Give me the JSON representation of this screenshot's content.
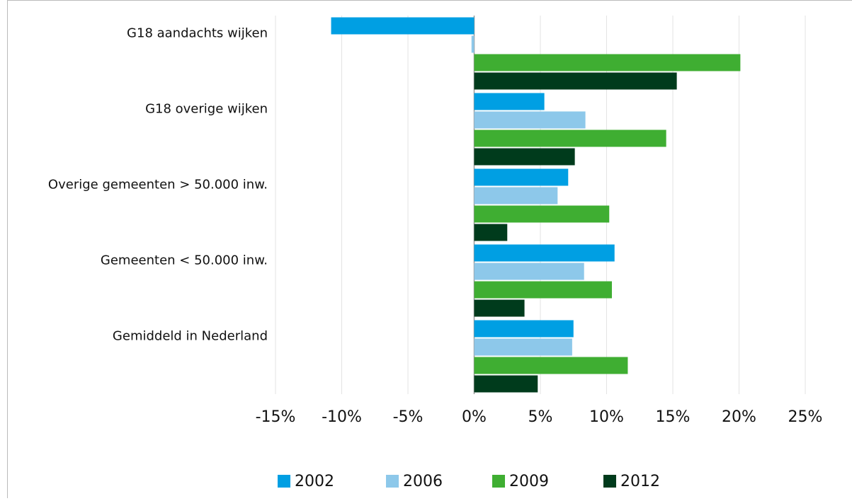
{
  "chart_data": {
    "type": "hbar",
    "categories": [
      "G18 aandachts wijken",
      "G18 overige wijken",
      "Overige gemeenten > 50.000 inw.",
      "Gemeenten < 50.000 inw.",
      "Gemiddeld in Nederland"
    ],
    "series": [
      {
        "name": "2002",
        "color": "#009fe3",
        "values": [
          -10.8,
          5.3,
          7.1,
          10.6,
          7.5
        ]
      },
      {
        "name": "2006",
        "color": "#8dc8ea",
        "values": [
          -0.2,
          8.4,
          6.3,
          8.3,
          7.4
        ]
      },
      {
        "name": "2009",
        "color": "#3fae32",
        "values": [
          20.1,
          14.5,
          10.2,
          10.4,
          11.6
        ]
      },
      {
        "name": "2012",
        "color": "#003b1c",
        "values": [
          15.3,
          7.6,
          2.5,
          3.8,
          4.8
        ]
      }
    ],
    "xlim": [
      -15,
      25
    ],
    "xticks": [
      {
        "value": -15,
        "label": "-15%"
      },
      {
        "value": -10,
        "label": "-10%"
      },
      {
        "value": -5,
        "label": "-5%"
      },
      {
        "value": 0,
        "label": "0%"
      },
      {
        "value": 5,
        "label": "5%"
      },
      {
        "value": 10,
        "label": "10%"
      },
      {
        "value": 15,
        "label": "15%"
      },
      {
        "value": 20,
        "label": "20%"
      },
      {
        "value": 25,
        "label": "25%"
      }
    ],
    "grid": true,
    "legend": "bottom"
  }
}
